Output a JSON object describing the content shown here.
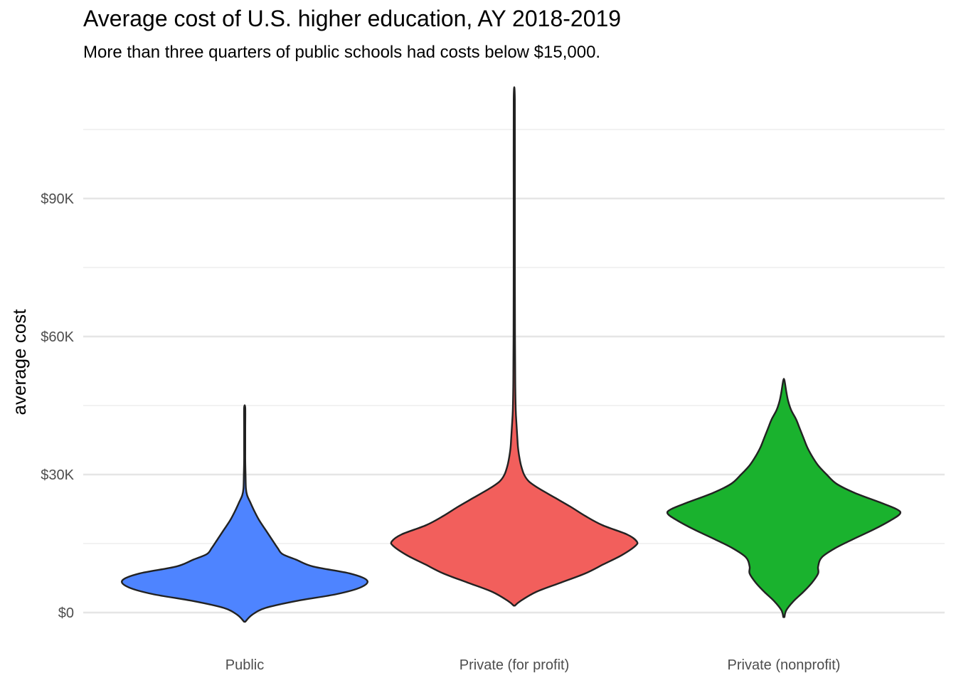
{
  "chart_data": {
    "type": "violin",
    "title": "Average cost of U.S. higher education, AY 2018-2019",
    "subtitle": "More than three quarters of public schools had costs below $15,000.",
    "xlabel": "",
    "ylabel": "average cost",
    "ylim": [
      -2500,
      112000
    ],
    "yticks": [
      0,
      30000,
      60000,
      90000
    ],
    "ytick_labels": [
      "$0",
      "$30K",
      "$60K",
      "$90K"
    ],
    "minor_gridlines": [
      15000,
      45000,
      75000,
      105000
    ],
    "grid": true,
    "legend": "none",
    "categories": [
      "Public",
      "Private (for profit)",
      "Private (nonprofit)"
    ],
    "colors": [
      "#4E84FF",
      "#F25F5C",
      "#1AB22E"
    ],
    "series": [
      {
        "category": "Public",
        "color": "#4E84FF",
        "min": -2000,
        "max": 44500,
        "density": [
          [
            -2000,
            0.0
          ],
          [
            -500,
            0.06
          ],
          [
            1000,
            0.17
          ],
          [
            2500,
            0.42
          ],
          [
            4000,
            0.75
          ],
          [
            5500,
            0.95
          ],
          [
            7000,
            1.0
          ],
          [
            8500,
            0.86
          ],
          [
            10000,
            0.56
          ],
          [
            11500,
            0.42
          ],
          [
            12700,
            0.31
          ],
          [
            14000,
            0.27
          ],
          [
            16000,
            0.22
          ],
          [
            18000,
            0.17
          ],
          [
            20000,
            0.12
          ],
          [
            22000,
            0.08
          ],
          [
            24000,
            0.045
          ],
          [
            25500,
            0.02
          ],
          [
            27000,
            0.01
          ],
          [
            30000,
            0.007
          ],
          [
            33000,
            0.004
          ],
          [
            36000,
            0.003
          ],
          [
            40000,
            0.002
          ],
          [
            44500,
            0.0
          ]
        ]
      },
      {
        "category": "Private (for profit)",
        "color": "#F25F5C",
        "min": 1500,
        "max": 111500,
        "density": [
          [
            1500,
            0.0
          ],
          [
            2500,
            0.05
          ],
          [
            4500,
            0.18
          ],
          [
            6500,
            0.38
          ],
          [
            8500,
            0.58
          ],
          [
            10500,
            0.73
          ],
          [
            12500,
            0.88
          ],
          [
            14500,
            0.99
          ],
          [
            15500,
            1.0
          ],
          [
            17000,
            0.92
          ],
          [
            19000,
            0.72
          ],
          [
            21000,
            0.58
          ],
          [
            23000,
            0.46
          ],
          [
            25000,
            0.33
          ],
          [
            27000,
            0.2
          ],
          [
            28500,
            0.12
          ],
          [
            30000,
            0.08
          ],
          [
            32000,
            0.055
          ],
          [
            34000,
            0.04
          ],
          [
            36000,
            0.03
          ],
          [
            38000,
            0.025
          ],
          [
            41000,
            0.018
          ],
          [
            44000,
            0.012
          ],
          [
            50000,
            0.008
          ],
          [
            60000,
            0.006
          ],
          [
            75000,
            0.005
          ],
          [
            90000,
            0.005
          ],
          [
            111500,
            0.0
          ]
        ]
      },
      {
        "category": "Private (nonprofit)",
        "color": "#1AB22E",
        "min": -1000,
        "max": 50500,
        "density": [
          [
            -1000,
            0.0
          ],
          [
            500,
            0.02
          ],
          [
            2500,
            0.08
          ],
          [
            4500,
            0.16
          ],
          [
            6500,
            0.23
          ],
          [
            8500,
            0.28
          ],
          [
            10000,
            0.28
          ],
          [
            12000,
            0.31
          ],
          [
            14000,
            0.42
          ],
          [
            16000,
            0.57
          ],
          [
            18000,
            0.73
          ],
          [
            20000,
            0.87
          ],
          [
            21500,
            0.95
          ],
          [
            22500,
            0.92
          ],
          [
            24000,
            0.78
          ],
          [
            26000,
            0.58
          ],
          [
            28000,
            0.43
          ],
          [
            30000,
            0.35
          ],
          [
            32000,
            0.28
          ],
          [
            34000,
            0.23
          ],
          [
            36000,
            0.19
          ],
          [
            38000,
            0.16
          ],
          [
            40000,
            0.13
          ],
          [
            42000,
            0.1
          ],
          [
            44000,
            0.06
          ],
          [
            46000,
            0.035
          ],
          [
            48000,
            0.02
          ],
          [
            50500,
            0.0
          ]
        ]
      }
    ]
  }
}
